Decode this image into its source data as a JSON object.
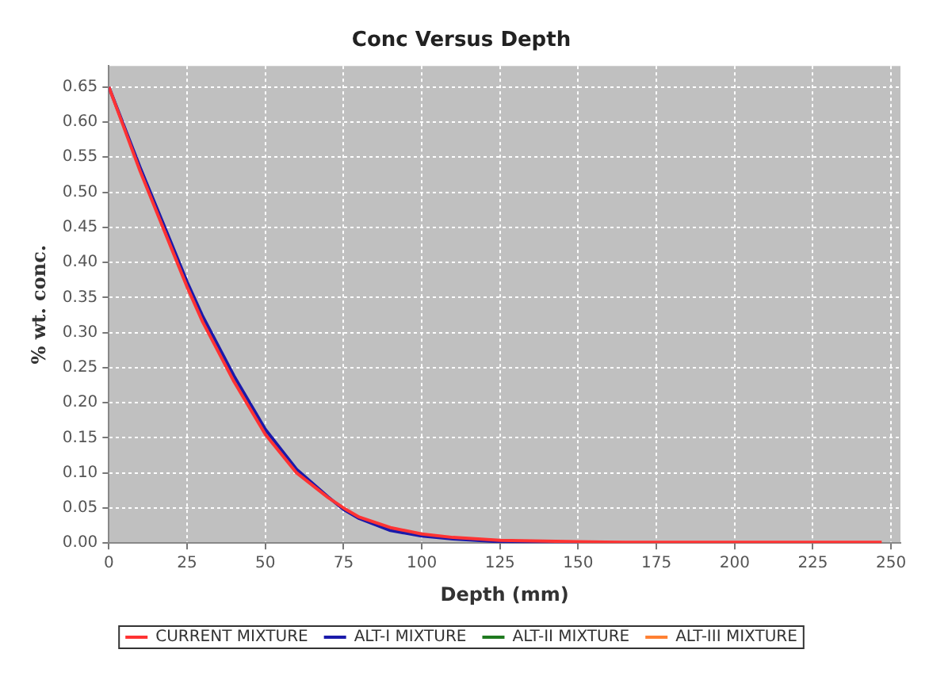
{
  "chart_data": {
    "type": "line",
    "title": "Conc Versus Depth",
    "xlabel": "Depth (mm)",
    "ylabel": "% wt. conc.",
    "x": [
      0,
      10,
      20,
      25,
      30,
      40,
      50,
      60,
      70,
      75,
      80,
      90,
      100,
      110,
      125,
      150,
      165,
      200,
      247
    ],
    "series": [
      {
        "name": "CURRENT MIXTURE",
        "color": "#ff3333",
        "values": [
          0.65,
          0.53,
          0.42,
          0.365,
          0.315,
          0.23,
          0.155,
          0.1,
          0.065,
          0.05,
          0.037,
          0.022,
          0.013,
          0.008,
          0.004,
          0.002,
          0.001,
          0.001,
          0.001
        ]
      },
      {
        "name": "ALT-I MIXTURE",
        "color": "#1a1aaa",
        "values": [
          0.65,
          0.535,
          0.427,
          0.372,
          0.323,
          0.238,
          0.162,
          0.105,
          0.066,
          0.048,
          0.035,
          0.018,
          0.01,
          0.006,
          0.002,
          0.0,
          null,
          null,
          null
        ]
      },
      {
        "name": "ALT-II MIXTURE",
        "color": "#1f7a1f",
        "values": [
          null,
          null,
          null,
          null,
          null,
          null,
          null,
          null,
          null,
          null,
          null,
          null,
          null,
          null,
          null,
          null,
          null,
          null,
          null
        ]
      },
      {
        "name": "ALT-III MIXTURE",
        "color": "#ff8033",
        "values": [
          null,
          null,
          null,
          null,
          null,
          null,
          null,
          null,
          null,
          null,
          null,
          null,
          null,
          null,
          null,
          null,
          null,
          null,
          null
        ]
      }
    ],
    "xlim": [
      0,
      253
    ],
    "xticks": [
      0,
      25,
      50,
      75,
      100,
      125,
      150,
      175,
      200,
      225,
      250
    ],
    "ylim": [
      0,
      0.68
    ],
    "yticks": [
      {
        "value": 0,
        "label": "0.00"
      },
      {
        "value": 0.05,
        "label": "0.05"
      },
      {
        "value": 0.1,
        "label": "0.10"
      },
      {
        "value": 0.15,
        "label": "0.15"
      },
      {
        "value": 0.2,
        "label": "0.20"
      },
      {
        "value": 0.25,
        "label": "0.25"
      },
      {
        "value": 0.3,
        "label": "0.30"
      },
      {
        "value": 0.35,
        "label": "0.35"
      },
      {
        "value": 0.4,
        "label": "0.40"
      },
      {
        "value": 0.45,
        "label": "0.45"
      },
      {
        "value": 0.5,
        "label": "0.50"
      },
      {
        "value": 0.55,
        "label": "0.55"
      },
      {
        "value": 0.6,
        "label": "0.60"
      },
      {
        "value": 0.65,
        "label": "0.65"
      }
    ],
    "grid": true,
    "legend": "bottom",
    "marker": "none",
    "line_style": "solid"
  }
}
